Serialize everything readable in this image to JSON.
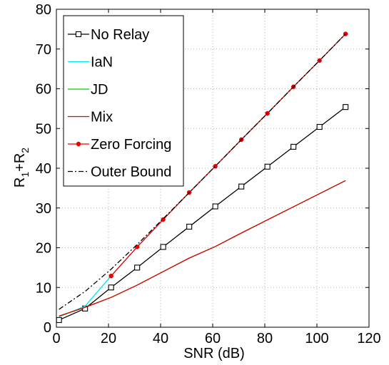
{
  "chart_data": {
    "type": "line",
    "title": "",
    "xlabel": "SNR (dB)",
    "ylabel_main": "R",
    "ylabel_parts": [
      {
        "text": "R",
        "sub": false
      },
      {
        "text": "1",
        "sub": true
      },
      {
        "text": "+R",
        "sub": false
      },
      {
        "text": "2",
        "sub": true
      }
    ],
    "xlim": [
      0,
      120
    ],
    "ylim": [
      0,
      80
    ],
    "xticks": [
      0,
      20,
      40,
      60,
      80,
      100,
      120
    ],
    "yticks": [
      0,
      10,
      20,
      30,
      40,
      50,
      60,
      70,
      80
    ],
    "grid": true,
    "legend_position": "top-left",
    "series": [
      {
        "name": "No Relay",
        "color": "#000000",
        "dash": "",
        "marker": "square",
        "x": [
          1,
          11,
          21,
          31,
          41,
          51,
          61,
          71,
          81,
          91,
          101,
          111
        ],
        "y": [
          1.8,
          4.7,
          10.0,
          15.0,
          20.2,
          25.3,
          30.4,
          35.4,
          40.4,
          45.4,
          50.4,
          55.4
        ]
      },
      {
        "name": "IaN",
        "color": "#00e5e5",
        "dash": "",
        "marker": "none",
        "x": [
          1,
          11,
          21,
          31,
          41,
          51,
          61,
          71,
          81,
          91,
          101,
          111
        ],
        "y": [
          2.6,
          5.3,
          12.9,
          20.2,
          27.1,
          33.9,
          40.5,
          47.2,
          53.8,
          60.5,
          67.1,
          73.8
        ]
      },
      {
        "name": "JD",
        "color": "#00cc00",
        "dash": "",
        "marker": "none",
        "x": [
          1,
          11,
          21,
          31,
          41,
          51,
          61,
          71,
          81,
          91,
          101,
          111
        ],
        "y": [
          2.8,
          5.0,
          7.5,
          10.6,
          14.0,
          17.4,
          20.3,
          23.7,
          27.0,
          30.3,
          33.6,
          36.9
        ]
      },
      {
        "name": "Mix",
        "color": "#dd0000",
        "dash": "",
        "marker": "none",
        "x": [
          1,
          11,
          21,
          31,
          41,
          51,
          61,
          71,
          81,
          91,
          101,
          111
        ],
        "y": [
          2.8,
          5.0,
          7.5,
          10.6,
          14.0,
          17.4,
          20.3,
          23.7,
          27.0,
          30.3,
          33.6,
          36.9
        ]
      },
      {
        "name": "Zero Forcing",
        "color": "#ee0000",
        "dash": "",
        "marker": "dot",
        "x": [
          21,
          31,
          41,
          51,
          61,
          71,
          81,
          91,
          101,
          111
        ],
        "y": [
          12.9,
          20.2,
          27.1,
          33.9,
          40.5,
          47.2,
          53.8,
          60.5,
          67.1,
          73.8
        ]
      },
      {
        "name": "Outer Bound",
        "color": "#000000",
        "dash": "7,3,2,3",
        "marker": "none",
        "x": [
          1,
          11,
          21,
          31,
          41,
          51,
          61,
          71,
          81,
          91,
          101,
          111
        ],
        "y": [
          4.5,
          9.0,
          14.6,
          20.8,
          27.3,
          33.9,
          40.5,
          47.2,
          53.8,
          60.5,
          67.1,
          73.8
        ]
      }
    ]
  }
}
